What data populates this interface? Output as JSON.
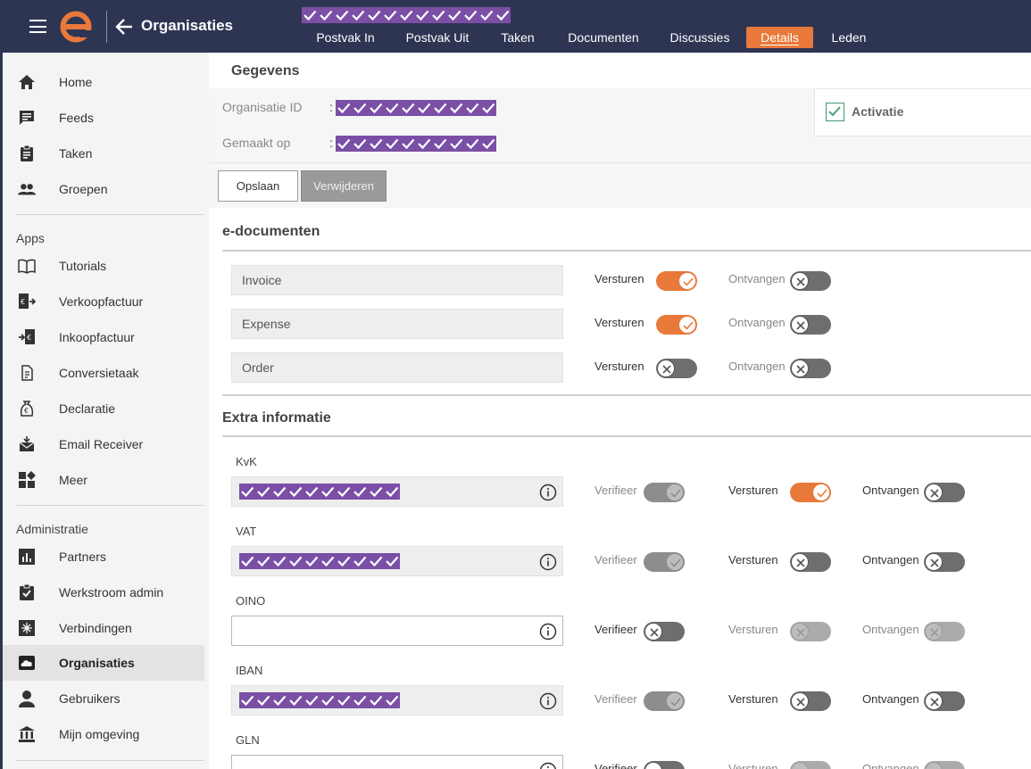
{
  "header": {
    "app_title": "Organisaties",
    "tabs": [
      "Postvak In",
      "Postvak Uit",
      "Taken",
      "Documenten",
      "Discussies",
      "Details",
      "Leden"
    ],
    "active_tab": "Details"
  },
  "sidebar": {
    "items": [
      {
        "label": "Home",
        "icon": "home-icon"
      },
      {
        "label": "Feeds",
        "icon": "feeds-icon"
      },
      {
        "label": "Taken",
        "icon": "clipboard-icon"
      },
      {
        "label": "Groepen",
        "icon": "group-icon"
      }
    ],
    "apps_title": "Apps",
    "apps": [
      {
        "label": "Tutorials",
        "icon": "book-icon"
      },
      {
        "label": "Verkoopfactuur",
        "icon": "invoice-out-icon"
      },
      {
        "label": "Inkoopfactuur",
        "icon": "invoice-in-icon"
      },
      {
        "label": "Conversietaak",
        "icon": "conversion-icon"
      },
      {
        "label": "Declaratie",
        "icon": "money-bag-icon"
      },
      {
        "label": "Email Receiver",
        "icon": "email-icon"
      },
      {
        "label": "Meer",
        "icon": "apps-icon"
      }
    ],
    "admin_title": "Administratie",
    "admin": [
      {
        "label": "Partners",
        "icon": "chart-icon"
      },
      {
        "label": "Werkstroom admin",
        "icon": "checklist-icon"
      },
      {
        "label": "Verbindingen",
        "icon": "connections-icon"
      },
      {
        "label": "Organisaties",
        "icon": "cloud-icon"
      },
      {
        "label": "Gebruikers",
        "icon": "user-icon"
      },
      {
        "label": "Mijn omgeving",
        "icon": "bank-icon"
      }
    ],
    "active": "Organisaties"
  },
  "details": {
    "title": "Gegevens",
    "org_id_label": "Organisatie ID",
    "created_label": "Gemaakt op",
    "colon": ":",
    "activation_label": "Activatie",
    "activation_checked": true
  },
  "buttons": {
    "save": "Opslaan",
    "delete": "Verwijderen"
  },
  "edocs": {
    "title": "e-documenten",
    "send_label": "Versturen",
    "receive_label": "Ontvangen",
    "rows": [
      {
        "name": "Invoice",
        "send": true,
        "receive": false
      },
      {
        "name": "Expense",
        "send": true,
        "receive": false
      },
      {
        "name": "Order",
        "send": false,
        "receive": false
      }
    ]
  },
  "extra": {
    "title": "Extra informatie",
    "verify_label": "Verifieer",
    "send_label": "Versturen",
    "receive_label": "Ontvangen",
    "rows": [
      {
        "name": "KvK",
        "value": "redacted",
        "verify": "disabled-on",
        "send": "on",
        "receive": "off"
      },
      {
        "name": "VAT",
        "value": "redacted",
        "verify": "disabled-on",
        "send": "off",
        "receive": "off"
      },
      {
        "name": "OINO",
        "value": "",
        "verify": "off",
        "send": "disabled-off",
        "receive": "disabled-off"
      },
      {
        "name": "IBAN",
        "value": "redacted",
        "verify": "disabled-on",
        "send": "off",
        "receive": "off"
      },
      {
        "name": "GLN",
        "value": "",
        "verify": "off",
        "send": "disabled-off",
        "receive": "disabled-off"
      }
    ]
  },
  "colors": {
    "topbar": "#2e3553",
    "accent": "#e8793a",
    "redacted": "#7b4fa6",
    "check": "#3d9b6a"
  }
}
